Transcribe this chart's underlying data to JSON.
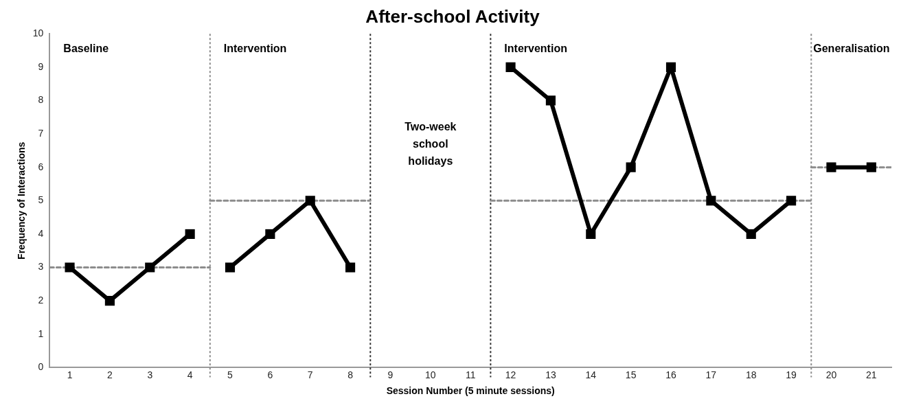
{
  "chart_data": {
    "type": "line",
    "title": "After-school Activity",
    "xlabel": "Session Number (5 minute sessions)",
    "ylabel": "Frequency of Interactions",
    "xlim": [
      0.5,
      21.5
    ],
    "xticks": [
      1,
      2,
      3,
      4,
      5,
      6,
      7,
      8,
      9,
      10,
      11,
      12,
      13,
      14,
      15,
      16,
      17,
      18,
      19,
      20,
      21
    ],
    "ylim": [
      0,
      10
    ],
    "yticks": [
      0,
      1,
      2,
      3,
      4,
      5,
      6,
      7,
      8,
      9,
      10
    ],
    "grid": false,
    "legend": false,
    "marker": "square",
    "line_style": "solid",
    "series": [
      {
        "color": "#000000",
        "x": [
          1,
          2,
          3,
          4
        ],
        "values": [
          3,
          2,
          3,
          4
        ]
      },
      {
        "color": "#000000",
        "x": [
          5,
          6,
          7,
          8
        ],
        "values": [
          3,
          4,
          5,
          3
        ]
      },
      {
        "color": "#000000",
        "x": [
          12,
          13,
          14,
          15,
          16,
          17,
          18,
          19
        ],
        "values": [
          9,
          8,
          4,
          6,
          9,
          5,
          4,
          5
        ]
      },
      {
        "color": "#000000",
        "x": [
          20,
          21
        ],
        "values": [
          6,
          6
        ]
      },
      {
        "color": "#8c8c8c",
        "marker": "none",
        "line_style": "dashed",
        "x": [
          0.5,
          4.5
        ],
        "values": [
          3,
          3
        ]
      },
      {
        "color": "#8c8c8c",
        "marker": "none",
        "line_style": "dashed",
        "x": [
          4.5,
          8.5
        ],
        "values": [
          5,
          5
        ]
      },
      {
        "color": "#8c8c8c",
        "marker": "none",
        "line_style": "dashed",
        "x": [
          11.5,
          19.5
        ],
        "values": [
          5,
          5
        ]
      },
      {
        "color": "#8c8c8c",
        "marker": "none",
        "line_style": "dashed",
        "x": [
          19.5,
          21.5
        ],
        "values": [
          6,
          6
        ]
      }
    ],
    "ref_lines": [
      {
        "axis": "x",
        "value": 4.5,
        "color": "#8c8c8c",
        "line_style": "dotted"
      },
      {
        "axis": "x",
        "value": 8.5,
        "color": "#333333",
        "line_style": "dotted"
      },
      {
        "axis": "x",
        "value": 11.5,
        "color": "#333333",
        "line_style": "dotted"
      },
      {
        "axis": "x",
        "value": 19.5,
        "color": "#8c8c8c",
        "line_style": "dotted"
      }
    ],
    "annotations": [
      "Baseline",
      "Intervention",
      "Two-week school holidays",
      "Intervention",
      "Generalisation"
    ]
  }
}
